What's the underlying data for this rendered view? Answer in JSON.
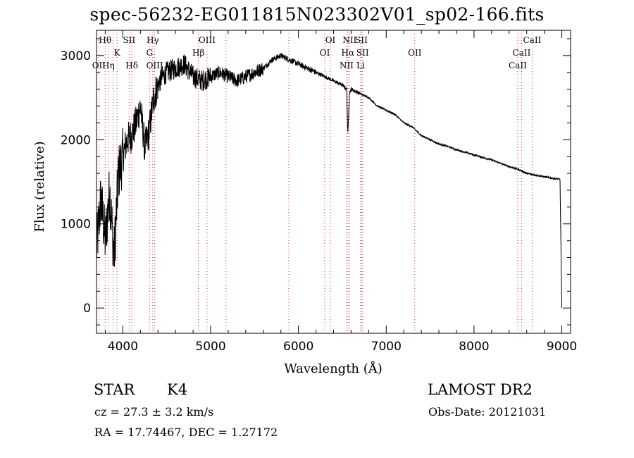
{
  "chart_data": {
    "type": "line",
    "title": "spec-56232-EG011815N023302V01_sp02-166.fits",
    "xlabel": "Wavelength (Å)",
    "ylabel": "Flux (relative)",
    "xlim": [
      3700,
      9100
    ],
    "ylim": [
      -300,
      3300
    ],
    "xticks": [
      4000,
      5000,
      6000,
      7000,
      8000,
      9000
    ],
    "yticks": [
      0,
      1000,
      2000,
      3000
    ],
    "grid": false,
    "line_color": "#000000",
    "marker_line_color": "#cc3333",
    "spectrum": {
      "name": "",
      "x": [
        3700,
        3750,
        3800,
        3850,
        3900,
        3950,
        4000,
        4050,
        4100,
        4150,
        4200,
        4250,
        4300,
        4350,
        4400,
        4450,
        4500,
        4600,
        4700,
        4800,
        4900,
        5000,
        5100,
        5200,
        5300,
        5400,
        5500,
        5600,
        5700,
        5800,
        5900,
        6000,
        6100,
        6200,
        6300,
        6400,
        6500,
        6550,
        6563,
        6580,
        6600,
        6700,
        6800,
        6900,
        7000,
        7100,
        7200,
        7300,
        7400,
        7500,
        7600,
        7700,
        7800,
        7900,
        8000,
        8100,
        8200,
        8300,
        8400,
        8500,
        8600,
        8700,
        8800,
        8900,
        8980,
        9000
      ],
      "y": [
        700,
        1300,
        800,
        1400,
        600,
        1600,
        1800,
        2000,
        2050,
        2200,
        2400,
        1900,
        2100,
        2500,
        2650,
        2750,
        2800,
        2850,
        2900,
        2750,
        2700,
        2750,
        2800,
        2750,
        2700,
        2750,
        2800,
        2850,
        2950,
        3000,
        2950,
        2900,
        2850,
        2800,
        2750,
        2700,
        2650,
        2600,
        2050,
        2550,
        2600,
        2550,
        2500,
        2400,
        2350,
        2300,
        2200,
        2150,
        2050,
        2000,
        1950,
        1920,
        1880,
        1850,
        1820,
        1790,
        1760,
        1720,
        1680,
        1650,
        1600,
        1580,
        1560,
        1540,
        1530,
        0
      ]
    },
    "line_markers": [
      {
        "label": "Hθ",
        "x": 3798,
        "row": 1
      },
      {
        "label": "OII",
        "x": 3727,
        "row": 3
      },
      {
        "label": "Hη",
        "x": 3835,
        "row": 3
      },
      {
        "label": "K",
        "x": 3934,
        "row": 2
      },
      {
        "label": "SII",
        "x": 4072,
        "row": 1
      },
      {
        "label": "Hδ",
        "x": 4102,
        "row": 3
      },
      {
        "label": "Hγ",
        "x": 4340,
        "row": 1
      },
      {
        "label": "G",
        "x": 4304,
        "row": 2
      },
      {
        "label": "OIII",
        "x": 4363,
        "row": 3
      },
      {
        "label": "OIII",
        "x": 4959,
        "row": 1
      },
      {
        "label": "Hβ",
        "x": 4861,
        "row": 2
      },
      {
        "label": "OI",
        "x": 6364,
        "row": 1
      },
      {
        "label": "OI",
        "x": 6300,
        "row": 2
      },
      {
        "label": "NII",
        "x": 6583,
        "row": 1
      },
      {
        "label": "SII",
        "x": 6717,
        "row": 1
      },
      {
        "label": "Hα",
        "x": 6563,
        "row": 2
      },
      {
        "label": "SII",
        "x": 6731,
        "row": 2
      },
      {
        "label": "NII",
        "x": 6548,
        "row": 3
      },
      {
        "label": "Li",
        "x": 6708,
        "row": 3
      },
      {
        "label": "OII",
        "x": 7325,
        "row": 2
      },
      {
        "label": "CaII",
        "x": 8662,
        "row": 1
      },
      {
        "label": "CaII",
        "x": 8542,
        "row": 2
      },
      {
        "label": "CaII",
        "x": 8498,
        "row": 3
      }
    ],
    "extra_marker_lines_x": [
      3889,
      4861,
      5175,
      5890
    ]
  },
  "info": {
    "class": "STAR",
    "subclass": "K4",
    "survey": "LAMOST DR2",
    "cz": "cz = 27.3 ± 3.2 km/s",
    "obs_date": "Obs-Date: 20121031",
    "coords": "RA =  17.74467, DEC =   1.27172"
  }
}
